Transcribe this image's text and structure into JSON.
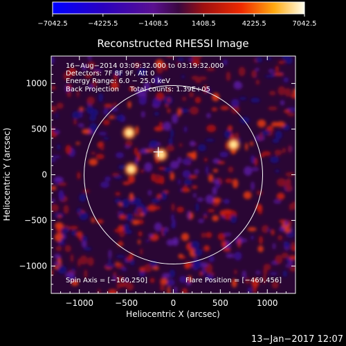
{
  "colorbar": {
    "tick_labels": [
      "-7042.5",
      "-4225.5",
      "-1408.5",
      "1408.5",
      "4225.5",
      "7042.5"
    ],
    "min": -7042.5,
    "max": 7042.5
  },
  "chart_data": {
    "type": "heatmap",
    "title": "Reconstructed RHESSI Image",
    "xlabel": "Heliocentric X (arcsec)",
    "ylabel": "Heliocentric Y (arcsec)",
    "xlim": [
      -1300,
      1300
    ],
    "ylim": [
      -1300,
      1300
    ],
    "x_ticks": [
      -1000,
      -500,
      0,
      500,
      1000
    ],
    "x_tick_labels": [
      "−1000",
      "−500",
      "0",
      "500",
      "1000"
    ],
    "y_ticks": [
      -1000,
      -500,
      0,
      500,
      1000
    ],
    "y_tick_labels": [
      "−1000",
      "−500",
      "0",
      "500",
      "1000"
    ],
    "annotations": [
      "16−Aug−2014 03:09:32.000 to 03:19:32.000",
      "Detectors: 7F 8F 9F, Att 0",
      "Energy Range: 6.0 − 25.0 keV",
      "Back Projection     Total counts: 1.39E+05"
    ],
    "spin_axis": "Spin Axis = [−160,250]",
    "flare_position": "Flare Position = [−469,456]",
    "limb_radius_arcsec": 950,
    "marker_position": [
      -160,
      250
    ],
    "bright_sources": [
      {
        "x": -470,
        "y": 460
      },
      {
        "x": -130,
        "y": 220
      },
      {
        "x": -450,
        "y": 60
      },
      {
        "x": 640,
        "y": 330
      }
    ],
    "colormap": "blue-purple-red-yellow-white"
  },
  "footer": {
    "date": "13−Jan−2017 12:07"
  }
}
